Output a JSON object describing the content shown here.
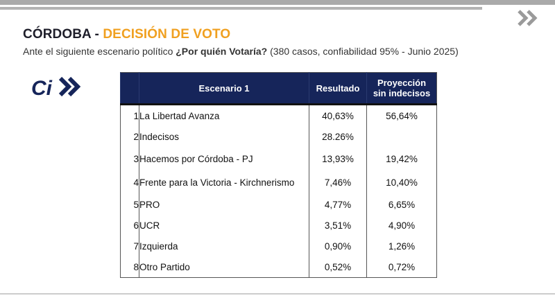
{
  "header": {
    "title_part1": "CÓRDOBA - ",
    "title_part2": "DECISIÓN DE VOTO",
    "subtitle_prefix": "Ante el siguiente escenario político ",
    "subtitle_question": "¿Por quién Votaría?",
    "subtitle_suffix": " (380 casos, confiabilidad 95% - Junio 2025)"
  },
  "logo": {
    "text": "Ci",
    "colors": {
      "primary": "#16255a",
      "accent": "#3a4a8a"
    }
  },
  "colors": {
    "header_bg": "#16255a",
    "title_orange": "#f0a020",
    "title_dark": "#1e1e2a"
  },
  "icons": {
    "top_right": "double-chevron-right-icon"
  },
  "table": {
    "columns": {
      "rank": "",
      "scenario": "Escenario 1",
      "result": "Resultado",
      "projection_line1": "Proyección",
      "projection_line2": "sin indecisos"
    },
    "rows": [
      {
        "rank": "1",
        "name": "La Libertad Avanza",
        "result": "40,63%",
        "projection": "56,64%"
      },
      {
        "rank": "2",
        "name": "Indecisos",
        "result": "28.26%",
        "projection": ""
      },
      {
        "rank": "3",
        "name": "Hacemos por Córdoba - PJ",
        "result": "13,93%",
        "projection": "19,42%"
      },
      {
        "rank": "4",
        "name": "Frente para la Victoria - Kirchnerismo",
        "result": "7,46%",
        "projection": "10,40%"
      },
      {
        "rank": "5",
        "name": "PRO",
        "result": "4,77%",
        "projection": "6,65%"
      },
      {
        "rank": "6",
        "name": "UCR",
        "result": "3,51%",
        "projection": "4,90%"
      },
      {
        "rank": "7",
        "name": "Izquierda",
        "result": "0,90%",
        "projection": "1,26%"
      },
      {
        "rank": "8",
        "name": "Otro Partido",
        "result": "0,52%",
        "projection": "0,72%"
      }
    ]
  }
}
